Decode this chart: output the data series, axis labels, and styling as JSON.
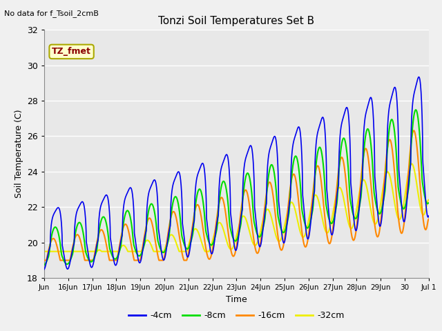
{
  "title": "Tonzi Soil Temperatures Set B",
  "xlabel": "Time",
  "ylabel": "Soil Temperature (C)",
  "no_data_text": "No data for f_Tsoil_2cmB",
  "tz_fmet_label": "TZ_fmet",
  "ylim": [
    18,
    32
  ],
  "yticks": [
    18,
    20,
    22,
    24,
    26,
    28,
    30,
    32
  ],
  "xtick_labels": [
    "Jun",
    "16Jun",
    "17Jun",
    "18Jun",
    "19Jun",
    "20Jun",
    "21Jun",
    "22Jun",
    "23Jun",
    "24Jun",
    "25Jun",
    "26Jun",
    "27Jun",
    "28Jun",
    "29Jun",
    "30",
    "Jul 1"
  ],
  "legend_labels": [
    "-4cm",
    "-8cm",
    "-16cm",
    "-32cm"
  ],
  "legend_colors": [
    "#0000ee",
    "#00dd00",
    "#ff8800",
    "#eeee00"
  ],
  "background_color": "#f0f0f0",
  "plot_bg_color": "#e8e8e8",
  "linewidth_4cm": 1.2,
  "linewidth_others": 1.5
}
